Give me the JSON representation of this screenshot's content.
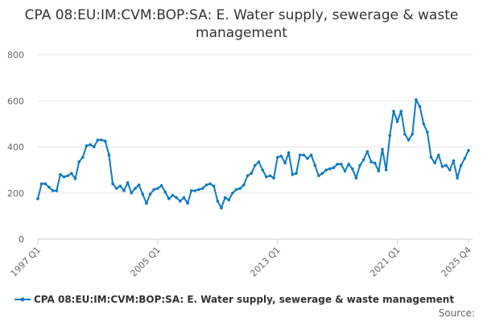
{
  "chart_data": {
    "type": "line",
    "title": "CPA 08:EU:IM:CVM:BOP:SA: E. Water supply, sewerage & waste management",
    "xlabel": "",
    "ylabel": "",
    "ylim": [
      0,
      800
    ],
    "yticks": [
      0,
      200,
      400,
      600,
      800
    ],
    "x_start": "1997 Q1",
    "x_end": "2025 Q4",
    "xtick_labels": [
      {
        "label": "1997 Q1",
        "index": 0
      },
      {
        "label": "2005 Q1",
        "index": 32
      },
      {
        "label": "2013 Q1",
        "index": 64
      },
      {
        "label": "2021 Q1",
        "index": 96
      },
      {
        "label": "2025 Q4",
        "index": 115
      }
    ],
    "grid": true,
    "legend_position": "bottom",
    "color": "#0e7ac4",
    "series": [
      {
        "name": "CPA 08:EU:IM:CVM:BOP:SA: E. Water supply, sewerage & waste management",
        "values": [
          175,
          240,
          240,
          225,
          210,
          210,
          280,
          270,
          275,
          285,
          262,
          335,
          355,
          405,
          410,
          400,
          430,
          430,
          425,
          365,
          240,
          220,
          230,
          210,
          245,
          200,
          220,
          235,
          195,
          155,
          195,
          215,
          220,
          232,
          205,
          175,
          190,
          180,
          165,
          180,
          155,
          210,
          210,
          215,
          220,
          235,
          240,
          230,
          165,
          135,
          180,
          170,
          200,
          215,
          220,
          235,
          275,
          285,
          320,
          335,
          300,
          270,
          275,
          265,
          355,
          360,
          330,
          375,
          280,
          285,
          365,
          365,
          350,
          365,
          320,
          275,
          285,
          300,
          305,
          310,
          325,
          325,
          295,
          325,
          305,
          265,
          320,
          345,
          380,
          335,
          330,
          295,
          390,
          300,
          450,
          555,
          510,
          555,
          455,
          430,
          455,
          605,
          575,
          500,
          465,
          355,
          330,
          365,
          315,
          320,
          300,
          340,
          265,
          320,
          350,
          385
        ]
      }
    ],
    "source_label": "Source:"
  }
}
